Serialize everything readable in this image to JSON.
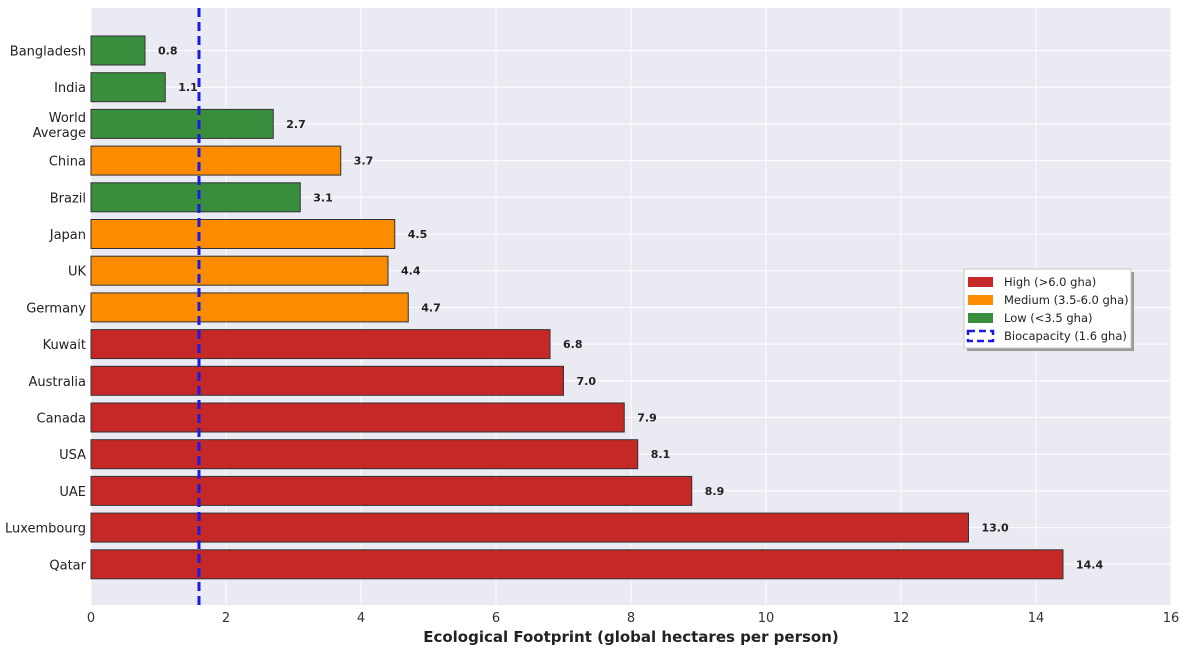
{
  "chart_data": {
    "type": "bar",
    "orientation": "horizontal",
    "title": "",
    "xlabel": "Ecological Footprint (global hectares per person)",
    "ylabel": "",
    "xlim": [
      0,
      16
    ],
    "xticks": [
      0,
      2,
      4,
      6,
      8,
      10,
      12,
      14,
      16
    ],
    "grid": true,
    "legend_position": "center-right",
    "categories": [
      "Bangladesh",
      "India",
      "World Average",
      "China",
      "Brazil",
      "Japan",
      "UK",
      "Germany",
      "Kuwait",
      "Australia",
      "Canada",
      "USA",
      "UAE",
      "Luxembourg",
      "Qatar"
    ],
    "values": [
      0.8,
      1.1,
      2.7,
      3.7,
      3.1,
      4.5,
      4.4,
      4.7,
      6.8,
      7.0,
      7.9,
      8.1,
      8.9,
      13.0,
      14.4
    ],
    "value_labels": [
      "0.8",
      "1.1",
      "2.7",
      "3.7",
      "3.1",
      "4.5",
      "4.4",
      "4.7",
      "6.8",
      "7.0",
      "7.9",
      "8.1",
      "8.9",
      "13.0",
      "14.4"
    ],
    "bar_groups": [
      "low",
      "low",
      "low",
      "medium",
      "low",
      "medium",
      "medium",
      "medium",
      "high",
      "high",
      "high",
      "high",
      "high",
      "high",
      "high"
    ],
    "group_colors": {
      "high": "#c62828",
      "medium": "#fb8c00",
      "low": "#388e3c"
    },
    "reference_line": {
      "value": 1.6,
      "color": "#1a1ae6",
      "style": "dashed"
    },
    "legend": [
      {
        "label": "High (>6.0 gha)",
        "group": "high",
        "kind": "patch"
      },
      {
        "label": "Medium (3.5-6.0 gha)",
        "group": "medium",
        "kind": "patch"
      },
      {
        "label": "Low (<3.5 gha)",
        "group": "low",
        "kind": "patch"
      },
      {
        "label": "Biocapacity (1.6 gha)",
        "group": "reference",
        "kind": "dashed-line"
      }
    ],
    "colors": {
      "plot_background": "#eaeaf2",
      "grid": "#ffffff",
      "bar_edge": "#333333"
    }
  }
}
